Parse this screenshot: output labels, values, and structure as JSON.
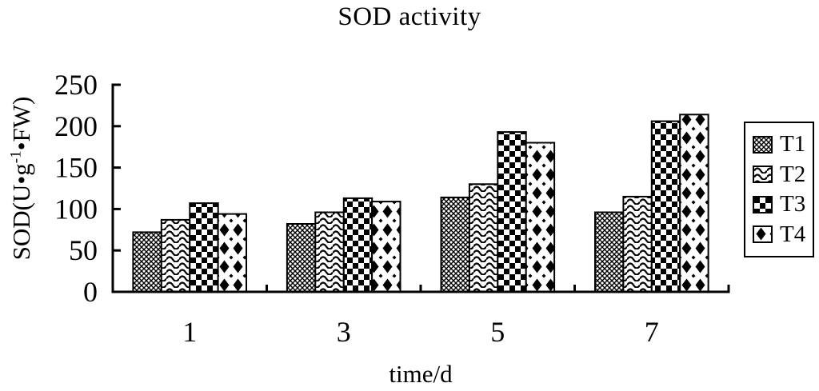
{
  "chart_data": {
    "type": "bar",
    "title": "SOD activity",
    "xlabel": "time/d",
    "ylabel": "SOD(U•g-1•FW)",
    "ylabel_parts": {
      "pre": "SOD(U•g",
      "sup": "-1",
      "post": "•FW)"
    },
    "categories": [
      "1",
      "3",
      "5",
      "7"
    ],
    "series": [
      {
        "name": "T1",
        "pattern": "dense-crosshatch",
        "values": [
          72,
          82,
          114,
          96
        ]
      },
      {
        "name": "T2",
        "pattern": "wavy-lines",
        "values": [
          87,
          96,
          130,
          115
        ]
      },
      {
        "name": "T3",
        "pattern": "checkerboard",
        "values": [
          107,
          113,
          193,
          206
        ]
      },
      {
        "name": "T4",
        "pattern": "diamond-columns",
        "values": [
          94,
          109,
          180,
          214
        ]
      }
    ],
    "yticks": [
      0,
      50,
      100,
      150,
      200,
      250
    ],
    "ylim": [
      0,
      250
    ],
    "grid": false,
    "legend_position": "right",
    "colors": {
      "foreground": "#000000",
      "background": "#ffffff"
    }
  }
}
